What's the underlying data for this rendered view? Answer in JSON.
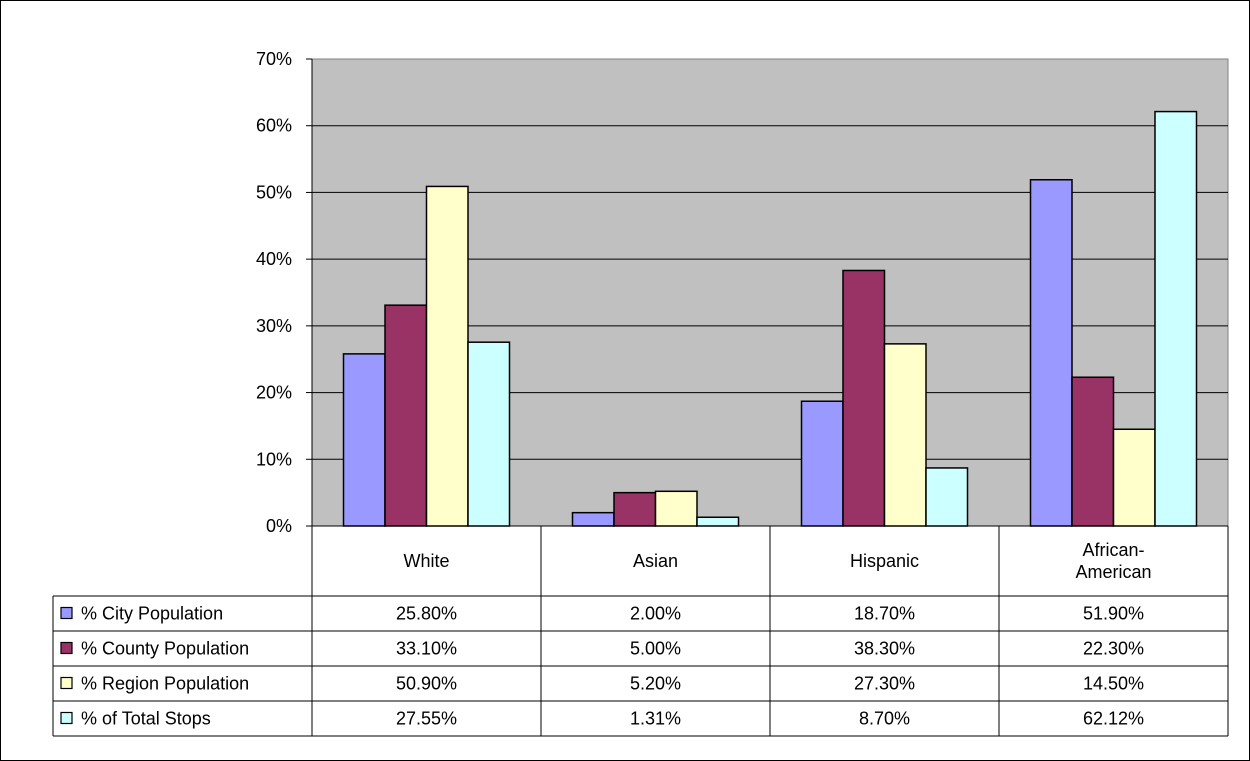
{
  "chart_data": {
    "type": "bar",
    "categories": [
      "White",
      "Asian",
      "Hispanic",
      "African-American"
    ],
    "category_lines": [
      [
        "White"
      ],
      [
        "Asian"
      ],
      [
        "Hispanic"
      ],
      [
        "African-",
        "American"
      ]
    ],
    "ylim": [
      0,
      70
    ],
    "y_ticks": [
      0,
      10,
      20,
      30,
      40,
      50,
      60,
      70
    ],
    "y_tick_labels": [
      "0%",
      "10%",
      "20%",
      "30%",
      "40%",
      "50%",
      "60%",
      "70%"
    ],
    "grid": true,
    "legend": "data-table",
    "plot_background": "#c0c0c0",
    "series": [
      {
        "name": "% City Population",
        "color": "#9999ff",
        "values": [
          25.8,
          2.0,
          18.7,
          51.9
        ],
        "labels": [
          "25.80%",
          "2.00%",
          "18.70%",
          "51.90%"
        ]
      },
      {
        "name": "% County Population",
        "color": "#993366",
        "values": [
          33.1,
          5.0,
          38.3,
          22.3
        ],
        "labels": [
          "33.10%",
          "5.00%",
          "38.30%",
          "22.30%"
        ]
      },
      {
        "name": "% Region Population",
        "color": "#ffffcc",
        "values": [
          50.9,
          5.2,
          27.3,
          14.5
        ],
        "labels": [
          "50.90%",
          "5.20%",
          "27.30%",
          "14.50%"
        ]
      },
      {
        "name": "% of Total Stops",
        "color": "#ccffff",
        "values": [
          27.55,
          1.31,
          8.7,
          62.12
        ],
        "labels": [
          "27.55%",
          "1.31%",
          "8.70%",
          "62.12%"
        ]
      }
    ]
  }
}
